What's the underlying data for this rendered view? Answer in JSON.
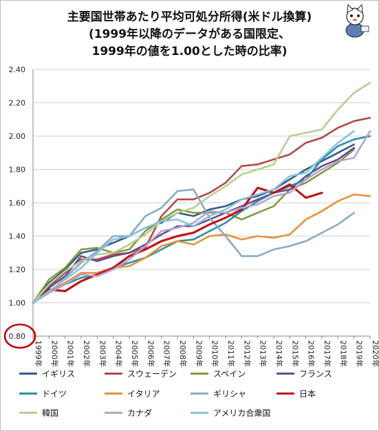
{
  "chart_data": {
    "type": "line",
    "title_lines": [
      "主要国世帯あたり平均可処分所得(米ドル換算)",
      "(1999年以降のデータがある国限定、",
      "1999年の値を1.00とした時の比率)"
    ],
    "x": [
      "1999年",
      "2000年",
      "2001年",
      "2002年",
      "2003年",
      "2004年",
      "2005年",
      "2006年",
      "2007年",
      "2008年",
      "2009年",
      "2010年",
      "2011年",
      "2012年",
      "2013年",
      "2014年",
      "2015年",
      "2016年",
      "2017年",
      "2018年",
      "2019年",
      "2020年"
    ],
    "ylim": [
      0.8,
      2.4
    ],
    "yticks": [
      "0.80",
      "1.00",
      "1.20",
      "1.40",
      "1.60",
      "1.80",
      "2.00",
      "2.20",
      "2.40"
    ],
    "highlight_tick": "0.80",
    "grid": true,
    "legend_position": "bottom",
    "series": [
      {
        "name": "イギリス",
        "color": "#2f5b8a",
        "width": 2.6,
        "values": [
          1.0,
          1.12,
          1.2,
          1.3,
          1.32,
          1.36,
          1.4,
          1.45,
          1.48,
          1.54,
          1.52,
          1.56,
          1.58,
          1.62,
          1.64,
          1.68,
          1.74,
          1.8,
          1.85,
          1.9,
          1.95,
          null
        ]
      },
      {
        "name": "スウェーデン",
        "color": "#b5474a",
        "width": 2.6,
        "values": [
          1.0,
          1.1,
          1.18,
          1.26,
          1.26,
          1.29,
          1.3,
          1.33,
          1.52,
          1.62,
          1.62,
          1.66,
          1.72,
          1.82,
          1.83,
          1.86,
          1.89,
          1.96,
          1.99,
          2.05,
          2.09,
          2.11
        ]
      },
      {
        "name": "スペイン",
        "color": "#7f9a3c",
        "width": 2.6,
        "values": [
          1.0,
          1.14,
          1.21,
          1.32,
          1.33,
          1.3,
          1.32,
          1.43,
          1.5,
          1.56,
          1.54,
          1.54,
          1.54,
          1.5,
          1.54,
          1.58,
          1.68,
          1.72,
          1.78,
          1.84,
          1.92,
          null
        ]
      },
      {
        "name": "フランス",
        "color": "#6a4a8e",
        "width": 2.6,
        "values": [
          1.0,
          1.09,
          1.16,
          1.28,
          1.25,
          1.28,
          1.3,
          1.35,
          1.41,
          1.46,
          1.46,
          1.5,
          1.54,
          1.58,
          1.62,
          1.66,
          1.68,
          1.76,
          1.82,
          1.86,
          1.93,
          null
        ]
      },
      {
        "name": "ドイツ",
        "color": "#2e8da8",
        "width": 2.6,
        "values": [
          1.0,
          1.06,
          1.11,
          1.15,
          1.17,
          1.21,
          1.24,
          1.27,
          1.32,
          1.37,
          1.38,
          1.43,
          1.48,
          1.55,
          1.61,
          1.66,
          1.7,
          1.74,
          1.86,
          1.94,
          1.98,
          2.0
        ]
      },
      {
        "name": "イタリア",
        "color": "#e8913a",
        "width": 2.6,
        "values": [
          1.0,
          1.07,
          1.12,
          1.18,
          1.18,
          1.21,
          1.22,
          1.27,
          1.34,
          1.37,
          1.35,
          1.4,
          1.41,
          1.38,
          1.4,
          1.39,
          1.41,
          1.5,
          1.55,
          1.61,
          1.65,
          1.64
        ]
      },
      {
        "name": "ギリシャ",
        "color": "#8aaac2",
        "width": 2.6,
        "values": [
          1.0,
          1.06,
          1.15,
          1.24,
          1.31,
          1.4,
          1.4,
          1.52,
          1.57,
          1.67,
          1.68,
          1.51,
          1.4,
          1.28,
          1.28,
          1.32,
          1.34,
          1.37,
          1.42,
          1.47,
          1.54,
          null
        ]
      },
      {
        "name": "日本",
        "color": "#c0141c",
        "width": 3.2,
        "values": [
          1.0,
          1.08,
          1.07,
          1.13,
          1.17,
          1.21,
          1.28,
          1.32,
          1.37,
          1.4,
          1.42,
          1.47,
          1.51,
          1.56,
          1.69,
          1.66,
          1.71,
          1.63,
          1.66,
          null,
          null,
          null
        ]
      },
      {
        "name": "韓国",
        "color": "#b5cf92",
        "width": 2.6,
        "values": [
          1.0,
          1.11,
          1.19,
          1.25,
          1.29,
          1.3,
          1.35,
          1.41,
          1.49,
          1.54,
          1.57,
          1.64,
          1.7,
          1.77,
          1.8,
          1.83,
          2.0,
          2.02,
          2.04,
          2.16,
          2.26,
          2.32
        ]
      },
      {
        "name": "カナダ",
        "color": "#b3a4cc",
        "width": 2.6,
        "values": [
          1.0,
          1.06,
          1.11,
          1.17,
          1.16,
          1.2,
          1.26,
          1.34,
          1.43,
          1.45,
          1.48,
          1.55,
          1.54,
          1.57,
          1.59,
          1.64,
          1.66,
          1.74,
          1.8,
          1.85,
          1.87,
          2.03
        ]
      },
      {
        "name": "アメリカ合衆国",
        "color": "#86c3de",
        "width": 2.6,
        "values": [
          1.0,
          1.07,
          1.14,
          1.21,
          1.3,
          1.38,
          1.4,
          1.45,
          1.49,
          1.5,
          1.46,
          1.52,
          1.56,
          1.62,
          1.65,
          1.68,
          1.76,
          1.78,
          1.87,
          1.96,
          2.03,
          null
        ]
      }
    ]
  },
  "mascot": {
    "icon": "cat-mascot-icon"
  }
}
